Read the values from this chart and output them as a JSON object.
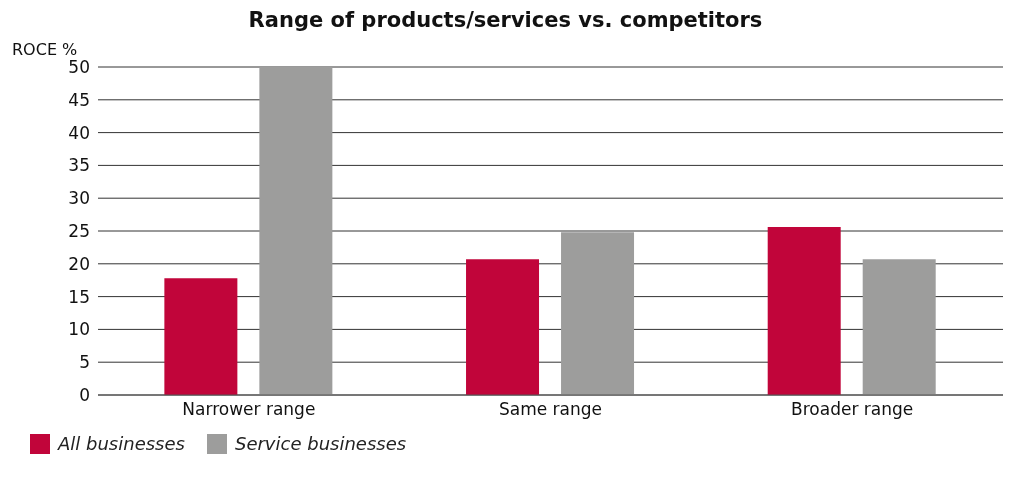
{
  "chart_data": {
    "type": "bar",
    "title": "Range of products/services vs. competitors",
    "ylabel": "ROCE %",
    "categories": [
      "Narrower range",
      "Same range",
      "Broader range"
    ],
    "series": [
      {
        "name": "All businesses",
        "color": "#c1053a",
        "values": [
          17.8,
          20.7,
          25.6
        ]
      },
      {
        "name": "Service businesses",
        "color": "#9d9d9c",
        "values": [
          50,
          24.8,
          20.7
        ]
      }
    ],
    "ylim": [
      0,
      50
    ],
    "yticks": [
      0,
      5,
      10,
      15,
      20,
      25,
      30,
      35,
      40,
      45,
      50
    ],
    "grid": "y",
    "legend": "bottom left"
  }
}
